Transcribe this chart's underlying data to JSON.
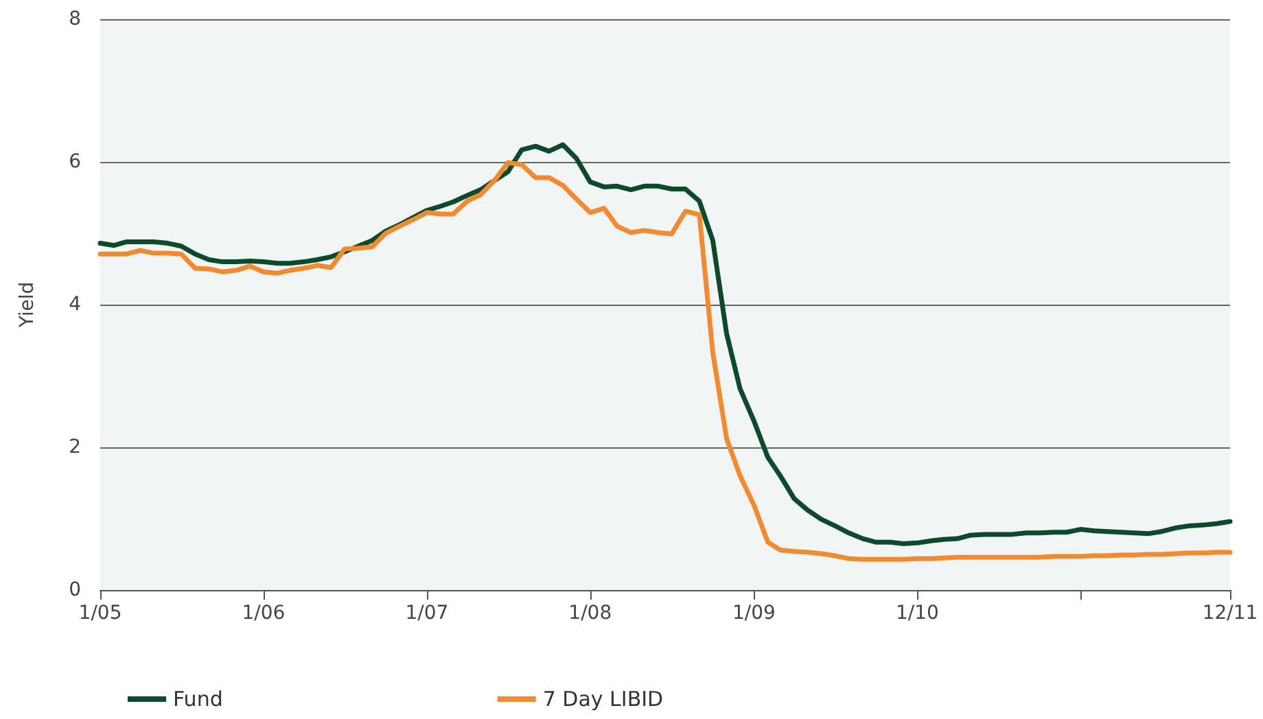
{
  "chart_data": {
    "type": "line",
    "ylabel": "Yield",
    "x": [
      "2005-01",
      "2005-02",
      "2005-03",
      "2005-04",
      "2005-05",
      "2005-06",
      "2005-07",
      "2005-08",
      "2005-09",
      "2005-10",
      "2005-11",
      "2005-12",
      "2006-01",
      "2006-02",
      "2006-03",
      "2006-04",
      "2006-05",
      "2006-06",
      "2006-07",
      "2006-08",
      "2006-09",
      "2006-10",
      "2006-11",
      "2006-12",
      "2007-01",
      "2007-02",
      "2007-03",
      "2007-04",
      "2007-05",
      "2007-06",
      "2007-07",
      "2007-08",
      "2007-09",
      "2007-10",
      "2007-11",
      "2007-12",
      "2008-01",
      "2008-02",
      "2008-03",
      "2008-04",
      "2008-05",
      "2008-06",
      "2008-07",
      "2008-08",
      "2008-09",
      "2008-10",
      "2008-11",
      "2008-12",
      "2009-01",
      "2009-02",
      "2009-03",
      "2009-04",
      "2009-05",
      "2009-06",
      "2009-07",
      "2009-08",
      "2009-09",
      "2009-10",
      "2009-11",
      "2009-12",
      "2010-01",
      "2010-02",
      "2010-03",
      "2010-04",
      "2010-05",
      "2010-06",
      "2010-07",
      "2010-08",
      "2010-09",
      "2010-10",
      "2010-11",
      "2010-12",
      "2011-01",
      "2011-02",
      "2011-03",
      "2011-04",
      "2011-05",
      "2011-06",
      "2011-07",
      "2011-08",
      "2011-09",
      "2011-10",
      "2011-11",
      "2011-12"
    ],
    "series": [
      {
        "name": "Fund",
        "color": "#0d4a2a",
        "values": [
          4.86,
          4.83,
          4.88,
          4.88,
          4.88,
          4.86,
          4.82,
          4.71,
          4.63,
          4.6,
          4.6,
          4.61,
          4.6,
          4.58,
          4.58,
          4.6,
          4.63,
          4.67,
          4.74,
          4.82,
          4.9,
          5.03,
          5.12,
          5.22,
          5.32,
          5.38,
          5.44,
          5.53,
          5.61,
          5.74,
          5.86,
          6.17,
          6.22,
          6.15,
          6.24,
          6.05,
          5.72,
          5.65,
          5.66,
          5.61,
          5.66,
          5.66,
          5.62,
          5.62,
          5.45,
          4.9,
          3.59,
          2.82,
          2.37,
          1.86,
          1.6,
          1.28,
          1.12,
          0.99,
          0.9,
          0.8,
          0.72,
          0.67,
          0.67,
          0.65,
          0.66,
          0.69,
          0.71,
          0.72,
          0.77,
          0.78,
          0.78,
          0.78,
          0.8,
          0.8,
          0.81,
          0.81,
          0.85,
          0.83,
          0.82,
          0.81,
          0.8,
          0.79,
          0.82,
          0.87,
          0.9,
          0.91,
          0.93,
          0.96
        ]
      },
      {
        "name": "7 Day LIBID",
        "color": "#f28a30",
        "values": [
          4.71,
          4.71,
          4.71,
          4.76,
          4.72,
          4.72,
          4.71,
          4.51,
          4.5,
          4.46,
          4.48,
          4.54,
          4.46,
          4.44,
          4.48,
          4.51,
          4.55,
          4.52,
          4.78,
          4.79,
          4.81,
          5.0,
          5.1,
          5.19,
          5.29,
          5.27,
          5.27,
          5.45,
          5.54,
          5.74,
          5.99,
          5.96,
          5.78,
          5.78,
          5.67,
          5.48,
          5.29,
          5.35,
          5.1,
          5.01,
          5.04,
          5.01,
          4.99,
          5.31,
          5.26,
          3.33,
          2.12,
          1.6,
          1.19,
          0.67,
          0.56,
          0.54,
          0.53,
          0.51,
          0.48,
          0.44,
          0.43,
          0.43,
          0.43,
          0.43,
          0.44,
          0.44,
          0.45,
          0.46,
          0.46,
          0.46,
          0.46,
          0.46,
          0.46,
          0.46,
          0.47,
          0.47,
          0.47,
          0.48,
          0.48,
          0.49,
          0.49,
          0.5,
          0.5,
          0.51,
          0.52,
          0.52,
          0.53,
          0.53
        ]
      }
    ],
    "xlim": [
      "2005-01",
      "2011-12"
    ],
    "xticks": [
      {
        "value": "2005-01",
        "label": "1/05"
      },
      {
        "value": "2006-01",
        "label": "1/06"
      },
      {
        "value": "2007-01",
        "label": "1/07"
      },
      {
        "value": "2008-01",
        "label": "1/08"
      },
      {
        "value": "2009-01",
        "label": "1/09"
      },
      {
        "value": "2010-01",
        "label": "1/10"
      },
      {
        "value": "2011-01",
        "label": null
      },
      {
        "value": "2011-12",
        "label": "12/11"
      }
    ],
    "ylim": [
      0,
      8
    ],
    "yticks": [
      0,
      2,
      4,
      6,
      8
    ],
    "grid": "y",
    "legend": "bottom left",
    "marker": "none",
    "line_style": "solid"
  }
}
